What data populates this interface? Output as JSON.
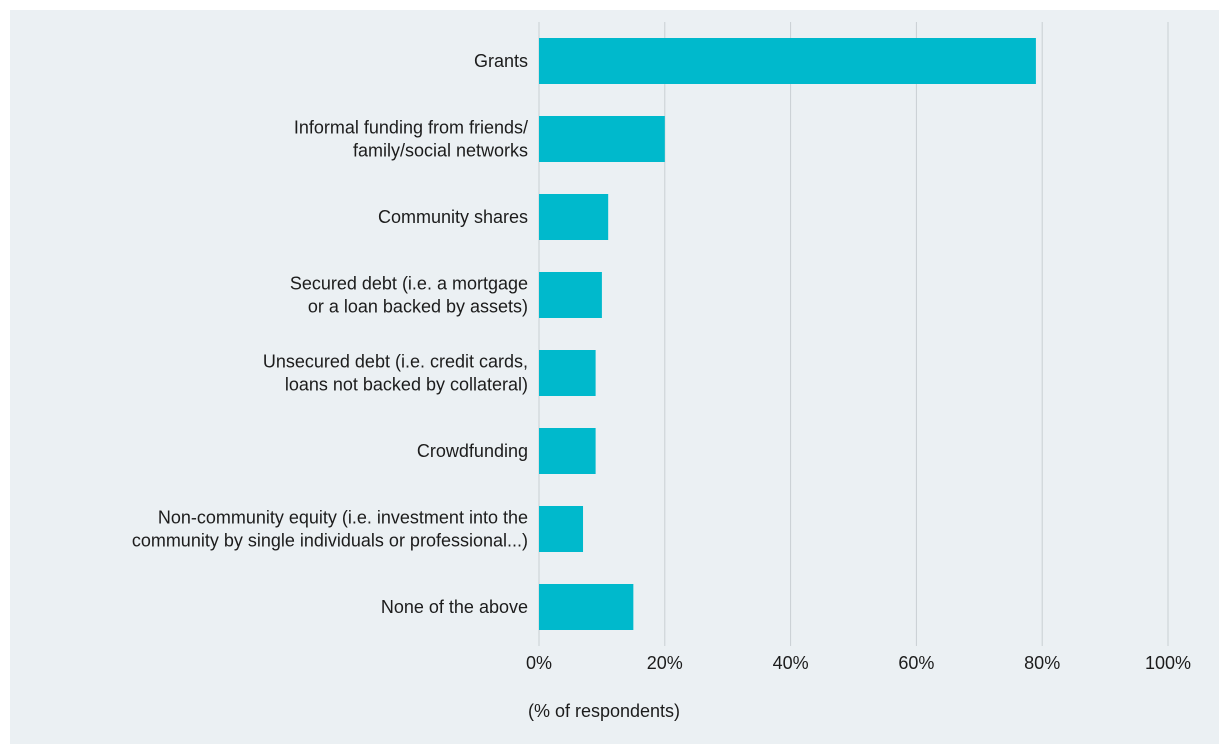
{
  "chart_data": {
    "type": "bar",
    "orientation": "horizontal",
    "title": "",
    "ylabel": "",
    "xlabel": "(% of respondents)",
    "categories": [
      [
        "Grants"
      ],
      [
        "Informal funding from friends/",
        "family/social networks"
      ],
      [
        "Community shares"
      ],
      [
        "Secured debt (i.e. a mortgage",
        "or a loan backed by assets)"
      ],
      [
        "Unsecured debt (i.e. credit cards,",
        "loans not backed by collateral)"
      ],
      [
        "Crowdfunding"
      ],
      [
        "Non-community equity (i.e. investment into the",
        "community by single individuals or professional...)"
      ],
      [
        "None of the above"
      ]
    ],
    "values": [
      79,
      20,
      11,
      10,
      9,
      9,
      7,
      15
    ],
    "xlim": [
      0,
      100
    ],
    "xticks": [
      0,
      20,
      40,
      60,
      80,
      100
    ],
    "xtick_labels": [
      "0%",
      "20%",
      "40%",
      "60%",
      "80%",
      "100%"
    ],
    "grid": "vertical",
    "legend": "none",
    "colors": {
      "bar": "#00b9cc",
      "grid": "#c9cfd3",
      "background": "#ebf0f3",
      "text": "#1c1c1c"
    }
  }
}
